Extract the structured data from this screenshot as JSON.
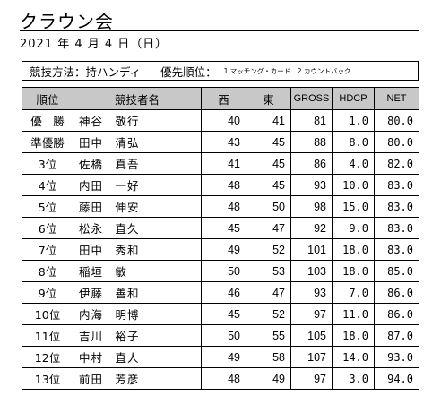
{
  "title": "クラウン会",
  "date": "2021 年 4 月 4 日（日）",
  "method": {
    "label": "競技方法：持ハンディ",
    "priority_label": "優先順位：",
    "priority_detail": "1 マッチング・カード　2 カウントバック"
  },
  "table": {
    "headers": [
      "順位",
      "競技者名",
      "西",
      "東",
      "GROSS",
      "HDCP",
      "NET"
    ],
    "rows": [
      {
        "rank": "優　勝",
        "name": "神谷　敬行",
        "west": "40",
        "east": "41",
        "gross": "81",
        "hdcp": "1.0",
        "net": "80.0"
      },
      {
        "rank": "準優勝",
        "name": "田中　清弘",
        "west": "43",
        "east": "45",
        "gross": "88",
        "hdcp": "8.0",
        "net": "80.0"
      },
      {
        "rank": "3位",
        "name": "佐橋　真吾",
        "west": "41",
        "east": "45",
        "gross": "86",
        "hdcp": "4.0",
        "net": "82.0"
      },
      {
        "rank": "4位",
        "name": "内田　一好",
        "west": "48",
        "east": "45",
        "gross": "93",
        "hdcp": "10.0",
        "net": "83.0"
      },
      {
        "rank": "5位",
        "name": "藤田　伸安",
        "west": "48",
        "east": "50",
        "gross": "98",
        "hdcp": "15.0",
        "net": "83.0"
      },
      {
        "rank": "6位",
        "name": "松永　直久",
        "west": "45",
        "east": "47",
        "gross": "92",
        "hdcp": "9.0",
        "net": "83.0"
      },
      {
        "rank": "7位",
        "name": "田中　秀和",
        "west": "49",
        "east": "52",
        "gross": "101",
        "hdcp": "18.0",
        "net": "83.0"
      },
      {
        "rank": "8位",
        "name": "稲垣　敏",
        "west": "50",
        "east": "53",
        "gross": "103",
        "hdcp": "18.0",
        "net": "85.0"
      },
      {
        "rank": "9位",
        "name": "伊藤　善和",
        "west": "46",
        "east": "47",
        "gross": "93",
        "hdcp": "7.0",
        "net": "86.0"
      },
      {
        "rank": "10位",
        "name": "内海　明博",
        "west": "45",
        "east": "52",
        "gross": "97",
        "hdcp": "11.0",
        "net": "86.0"
      },
      {
        "rank": "11位",
        "name": "吉川　裕子",
        "west": "50",
        "east": "55",
        "gross": "105",
        "hdcp": "18.0",
        "net": "87.0"
      },
      {
        "rank": "12位",
        "name": "中村　直人",
        "west": "49",
        "east": "58",
        "gross": "107",
        "hdcp": "14.0",
        "net": "93.0"
      },
      {
        "rank": "13位",
        "name": "前田　芳彦",
        "west": "48",
        "east": "49",
        "gross": "97",
        "hdcp": "3.0",
        "net": "94.0"
      }
    ]
  },
  "colors": {
    "header_bg": "#c8c8c8",
    "rule": "#000000"
  }
}
